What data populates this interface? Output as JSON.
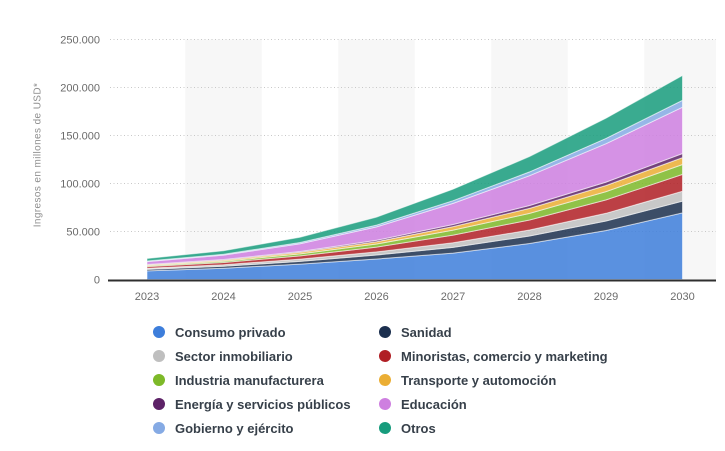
{
  "y_axis": {
    "title": "Ingresos en millones de USD*"
  },
  "chart_data": {
    "type": "area",
    "stacked": true,
    "title": "",
    "xlabel": "",
    "ylabel": "Ingresos en millones de USD*",
    "ylim": [
      0,
      250000
    ],
    "y_tick_interval": 50000,
    "grid": "horizontal-dotted",
    "plot_bands": "alternating-vertical-year-columns",
    "legend_position": "bottom",
    "x_labels": [
      "2023",
      "2024",
      "2025",
      "2026",
      "2027",
      "2028",
      "2029",
      "2030"
    ],
    "y_ticks": [
      {
        "value": 0,
        "label": "0"
      },
      {
        "value": 50000,
        "label": "50.000"
      },
      {
        "value": 100000,
        "label": "100.000"
      },
      {
        "value": 150000,
        "label": "150.000"
      },
      {
        "value": 200000,
        "label": "200.000"
      },
      {
        "value": 250000,
        "label": "250.000"
      }
    ],
    "series": [
      {
        "name": "Consumo privado",
        "slug": "consumo-privado",
        "color": "#3D7EDB",
        "values": [
          9000,
          11800,
          16000,
          21400,
          27500,
          37500,
          51000,
          69400
        ]
      },
      {
        "name": "Sanidad",
        "slug": "sanidad",
        "color": "#1B2F4E",
        "values": [
          1500,
          2000,
          2900,
          4100,
          5900,
          7800,
          9900,
          12300
        ]
      },
      {
        "name": "Sector inmobiliario",
        "slug": "sector-inmobiliario",
        "color": "#BFBFBF",
        "values": [
          1200,
          1600,
          2300,
          3300,
          4800,
          6300,
          8100,
          10300
        ]
      },
      {
        "name": "Minoristas, comercio y marketing",
        "slug": "minoristas-comercio-y-marketing",
        "color": "#B01E24",
        "values": [
          1700,
          2300,
          3400,
          5000,
          8000,
          10400,
          13900,
          17500
        ]
      },
      {
        "name": "Industria manufacturera",
        "slug": "industria-manufacturera",
        "color": "#7DB928",
        "values": [
          1000,
          1400,
          2100,
          3200,
          5300,
          6900,
          8700,
          10300
        ]
      },
      {
        "name": "Transporte y automoción",
        "slug": "transporte-y-automocion",
        "color": "#EBAE34",
        "values": [
          800,
          1100,
          1600,
          2400,
          3600,
          5200,
          6300,
          7200
        ]
      },
      {
        "name": "Energía y servicios públicos",
        "slug": "energia-y-servicios-publicos",
        "color": "#5D2267",
        "values": [
          400,
          600,
          900,
          1400,
          2200,
          3000,
          3600,
          4200
        ]
      },
      {
        "name": "Educación",
        "slug": "educacion",
        "color": "#CE7FE0",
        "values": [
          3000,
          4600,
          8000,
          14000,
          22000,
          31000,
          40000,
          48300
        ]
      },
      {
        "name": "Gobierno y ejército",
        "slug": "gobierno-y-ejercito",
        "color": "#85AAE4",
        "values": [
          700,
          900,
          1300,
          1900,
          2800,
          4000,
          5500,
          7200
        ]
      },
      {
        "name": "Otros",
        "slug": "otros",
        "color": "#179C7D",
        "values": [
          2600,
          3700,
          5500,
          8300,
          12000,
          16000,
          21000,
          25800
        ]
      }
    ]
  },
  "legend": {
    "items": [
      {
        "label": "Consumo privado",
        "slug": "consumo-privado",
        "color": "#3D7EDB"
      },
      {
        "label": "Sanidad",
        "slug": "sanidad",
        "color": "#1B2F4E"
      },
      {
        "label": "Sector inmobiliario",
        "slug": "sector-inmobiliario",
        "color": "#BFBFBF"
      },
      {
        "label": "Minoristas, comercio y marketing",
        "slug": "minoristas-comercio-y-marketing",
        "color": "#B01E24"
      },
      {
        "label": "Industria manufacturera",
        "slug": "industria-manufacturera",
        "color": "#7DB928"
      },
      {
        "label": "Transporte y automoción",
        "slug": "transporte-y-automocion",
        "color": "#EBAE34"
      },
      {
        "label": "Energía y servicios públicos",
        "slug": "energia-y-servicios-publicos",
        "color": "#5D2267"
      },
      {
        "label": "Educación",
        "slug": "educacion",
        "color": "#CE7FE0"
      },
      {
        "label": "Gobierno y ejército",
        "slug": "gobierno-y-ejercito",
        "color": "#85AAE4"
      },
      {
        "label": "Otros",
        "slug": "otros",
        "color": "#179C7D"
      }
    ]
  },
  "colors": {
    "grid_line": "#c8c8c8",
    "axis_line": "#2f2f2f",
    "plot_band": "#f7f7f7",
    "tick_text": "#6b6b6b",
    "legend_text": "#37404a"
  }
}
